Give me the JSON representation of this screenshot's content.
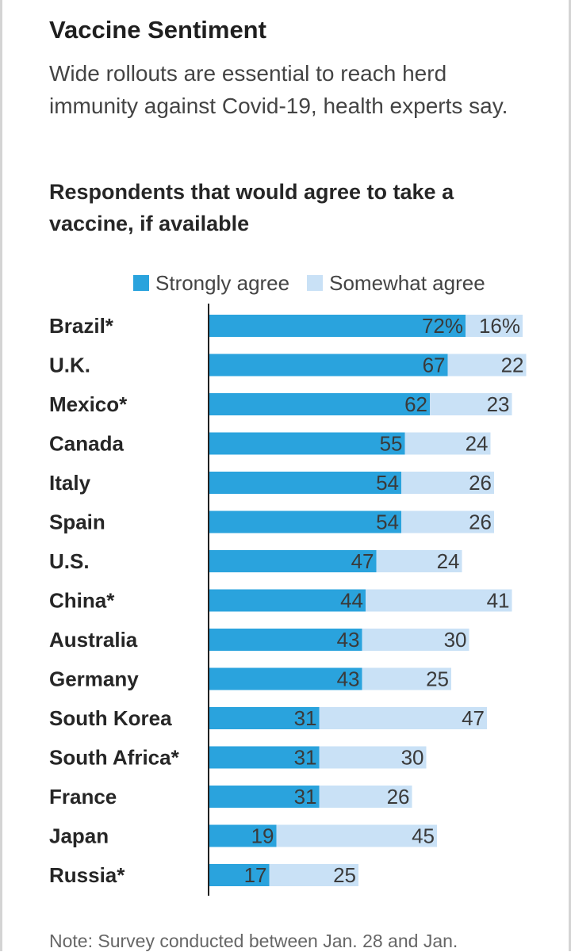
{
  "header": {
    "title": "Vaccine Sentiment",
    "subtitle": "Wide rollouts are essential to reach herd immunity against Covid-19, health experts say."
  },
  "colors": {
    "strong": "#2aa3dd",
    "somewhat": "#c9e1f6",
    "axis": "#222222",
    "label_text": "#3a3a3a"
  },
  "chart_data": {
    "type": "bar",
    "orientation": "horizontal",
    "stacked": true,
    "title": "Respondents that would agree to take a vaccine, if available",
    "legend": [
      "Strongly agree",
      "Somewhat agree"
    ],
    "legend_position": "top",
    "categories": [
      "Brazil*",
      "U.K.",
      "Mexico*",
      "Canada",
      "Italy",
      "Spain",
      "U.S.",
      "China*",
      "Australia",
      "Germany",
      "South Korea",
      "South Africa*",
      "France",
      "Japan",
      "Russia*"
    ],
    "series": [
      {
        "name": "Strongly agree",
        "values": [
          72,
          67,
          62,
          55,
          54,
          54,
          47,
          44,
          43,
          43,
          31,
          31,
          31,
          19,
          17
        ]
      },
      {
        "name": "Somewhat agree",
        "values": [
          16,
          22,
          23,
          24,
          26,
          26,
          24,
          41,
          30,
          25,
          47,
          30,
          26,
          45,
          25
        ]
      }
    ],
    "value_labels": {
      "strong": [
        "72%",
        "67",
        "62",
        "55",
        "54",
        "54",
        "47",
        "44",
        "43",
        "43",
        "31",
        "31",
        "31",
        "19",
        "17"
      ],
      "somewhat": [
        "16%",
        "22",
        "23",
        "24",
        "26",
        "26",
        "24",
        "41",
        "30",
        "25",
        "47",
        "30",
        "26",
        "45",
        "25"
      ]
    },
    "xlim": [
      0,
      90
    ],
    "grid": false
  },
  "footer": {
    "note": "Note: Survey conducted between Jan. 28 and Jan."
  }
}
